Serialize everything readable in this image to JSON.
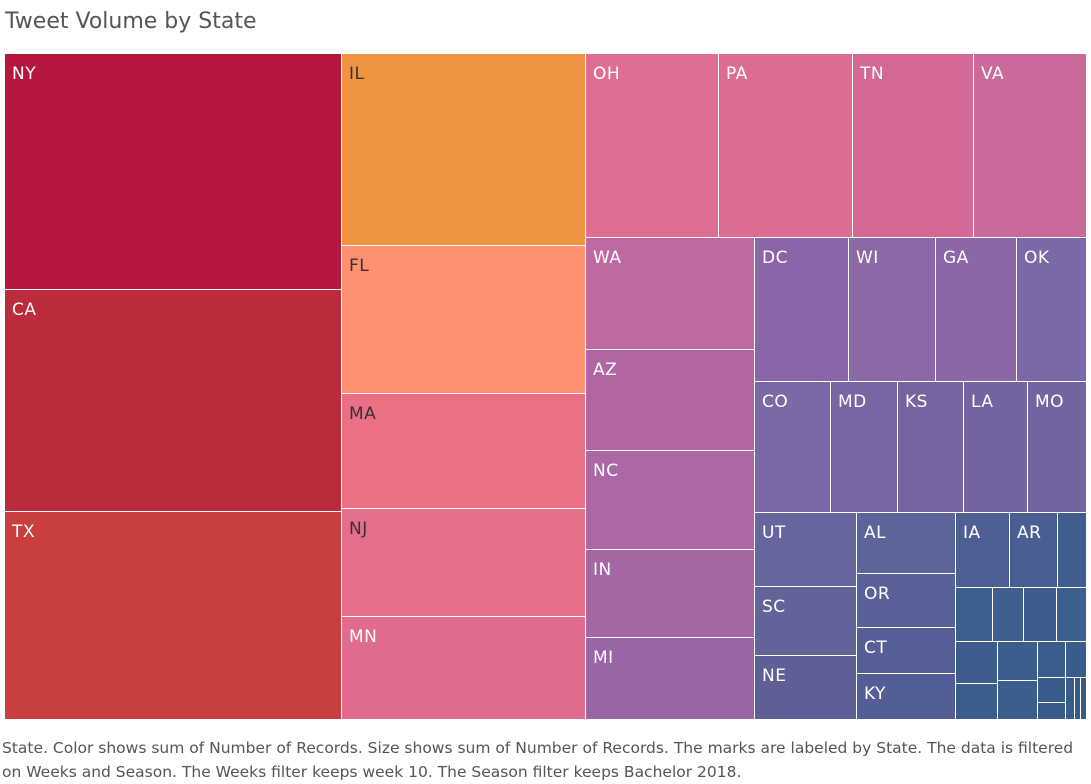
{
  "chart_title": "Tweet Volume by State",
  "caption": "State.  Color shows sum of Number of Records.  Size shows sum of Number of Records.  The marks are labeled by State. The data is filtered on Weeks and Season. The Weeks filter keeps week 10. The Season filter keeps Bachelor 2018.",
  "chart_data": {
    "type": "treemap",
    "title": "Tweet Volume by State",
    "size_measure": "sum of Number of Records",
    "color_measure": "sum of Number of Records",
    "label_field": "State",
    "color_scale": [
      "#b5163d",
      "#ef9440",
      "#ff9070",
      "#e0708e",
      "#aa64a0",
      "#6e64a0",
      "#3b5f8f"
    ],
    "values_note": "relative sizes estimated from tile areas",
    "states": [
      {
        "label": "NY",
        "value": 100,
        "color": "#b5163d"
      },
      {
        "label": "CA",
        "value": 94,
        "color": "#bc2b3c"
      },
      {
        "label": "TX",
        "value": 88,
        "color": "#c93f40"
      },
      {
        "label": "IL",
        "value": 58,
        "color": "#ef9440"
      },
      {
        "label": "FL",
        "value": 45,
        "color": "#ff9070"
      },
      {
        "label": "MA",
        "value": 35,
        "color": "#ea7085"
      },
      {
        "label": "NJ",
        "value": 33,
        "color": "#e66e88"
      },
      {
        "label": "MN",
        "value": 32,
        "color": "#e06b8c"
      },
      {
        "label": "OH",
        "value": 31,
        "color": "#df6e92"
      },
      {
        "label": "PA",
        "value": 31,
        "color": "#dd6c92"
      },
      {
        "label": "TN",
        "value": 28,
        "color": "#d36796"
      },
      {
        "label": "VA",
        "value": 26,
        "color": "#c96a9a"
      },
      {
        "label": "WA",
        "value": 24,
        "color": "#be69a0"
      },
      {
        "label": "AZ",
        "value": 21,
        "color": "#b166a2"
      },
      {
        "label": "NC",
        "value": 22,
        "color": "#ad67a4"
      },
      {
        "label": "IN",
        "value": 19,
        "color": "#a467a4"
      },
      {
        "label": "MI",
        "value": 18,
        "color": "#9a65a6"
      },
      {
        "label": "DC",
        "value": 13,
        "color": "#8a65a8"
      },
      {
        "label": "WI",
        "value": 12,
        "color": "#8b68a6"
      },
      {
        "label": "GA",
        "value": 11,
        "color": "#8a68a5"
      },
      {
        "label": "OK",
        "value": 10,
        "color": "#7b68a6"
      },
      {
        "label": "CO",
        "value": 10,
        "color": "#7c68a6"
      },
      {
        "label": "MD",
        "value": 9,
        "color": "#7965a2"
      },
      {
        "label": "KS",
        "value": 9,
        "color": "#7663a0"
      },
      {
        "label": "LA",
        "value": 8,
        "color": "#73649f"
      },
      {
        "label": "MO",
        "value": 8,
        "color": "#7364a0"
      },
      {
        "label": "UT",
        "value": 7,
        "color": "#67659d"
      },
      {
        "label": "SC",
        "value": 6,
        "color": "#626399"
      },
      {
        "label": "NE",
        "value": 5,
        "color": "#5f5f98"
      },
      {
        "label": "AL",
        "value": 6,
        "color": "#5c6599"
      },
      {
        "label": "OR",
        "value": 4,
        "color": "#586198"
      },
      {
        "label": "CT",
        "value": 4,
        "color": "#555e95"
      },
      {
        "label": "KY",
        "value": 4,
        "color": "#525e95"
      },
      {
        "label": "IA",
        "value": 3,
        "color": "#4d5f94"
      },
      {
        "label": "AR",
        "value": 3,
        "color": "#4a5e92"
      },
      {
        "label": "",
        "value": 2,
        "color": "#3f5e8e"
      },
      {
        "label": "",
        "value": 2,
        "color": "#3d5f8f"
      },
      {
        "label": "",
        "value": 2,
        "color": "#3e5f8f"
      },
      {
        "label": "",
        "value": 2,
        "color": "#3d5e8d"
      },
      {
        "label": "",
        "value": 2,
        "color": "#3c5f8e"
      },
      {
        "label": "",
        "value": 2,
        "color": "#3c5d8b"
      },
      {
        "label": "",
        "value": 1,
        "color": "#3b5e8d"
      },
      {
        "label": "",
        "value": 1,
        "color": "#3a5f8e"
      },
      {
        "label": "",
        "value": 1,
        "color": "#3b5e8d"
      },
      {
        "label": "",
        "value": 1,
        "color": "#3a5d8b"
      },
      {
        "label": "",
        "value": 1,
        "color": "#395d8a"
      },
      {
        "label": "",
        "value": 1,
        "color": "#395d8b"
      },
      {
        "label": "",
        "value": 1,
        "color": "#385c89"
      },
      {
        "label": "",
        "value": 1,
        "color": "#385c88"
      },
      {
        "label": "",
        "value": 1,
        "color": "#375b88"
      },
      {
        "label": "",
        "value": 1,
        "color": "#365b87"
      },
      {
        "label": "",
        "value": 1,
        "color": "#355a86"
      }
    ]
  }
}
